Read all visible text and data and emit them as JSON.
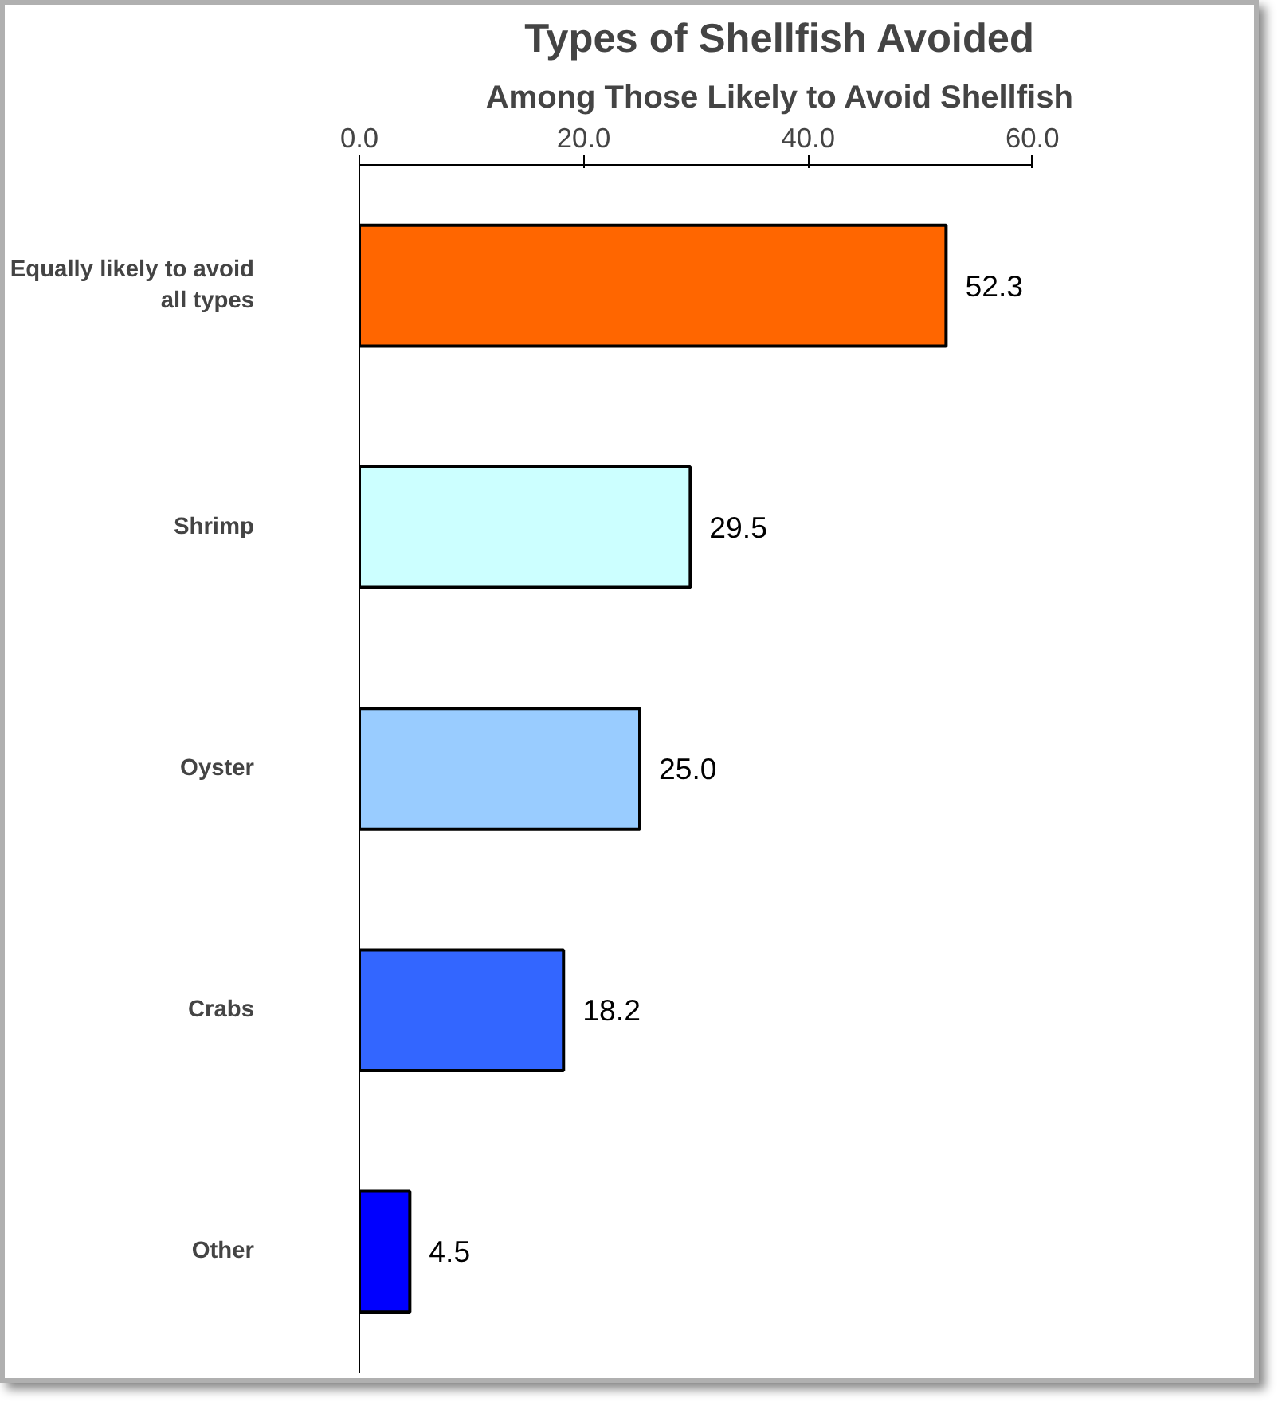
{
  "chart_data": {
    "type": "bar",
    "orientation": "horizontal",
    "title": "Types of Shellfish Avoided",
    "subtitle": "Among Those Likely to Avoid Shellfish",
    "categories": [
      "Equally likely to avoid all types",
      "Shrimp",
      "Oyster",
      "Crabs",
      "Other"
    ],
    "values": [
      52.3,
      29.5,
      25.0,
      18.2,
      4.5
    ],
    "colors": [
      "#ff6600",
      "#ccffff",
      "#99ccff",
      "#3366ff",
      "#0000ff"
    ],
    "xlim": [
      0,
      60
    ],
    "xticks": [
      {
        "value": 0,
        "label": "0.0"
      },
      {
        "value": 20,
        "label": "20.0"
      },
      {
        "value": 40,
        "label": "40.0"
      },
      {
        "value": 60,
        "label": "60.0"
      }
    ],
    "value_labels": [
      "52.3",
      "29.5",
      "25.0",
      "18.2",
      "4.5"
    ],
    "grid": false
  }
}
